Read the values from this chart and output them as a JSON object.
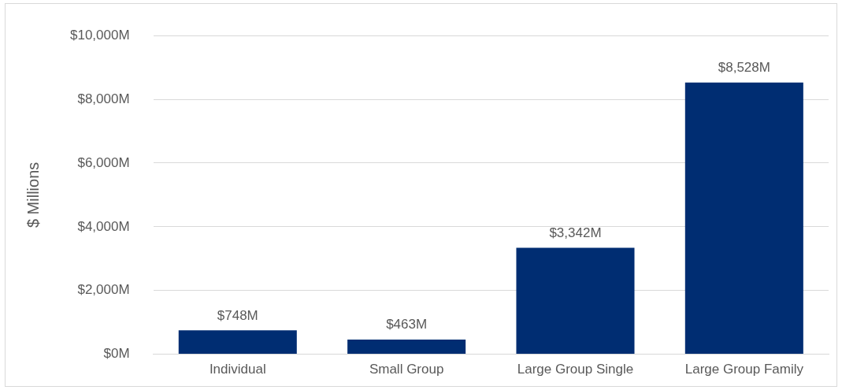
{
  "chart_data": {
    "type": "bar",
    "ylabel": "$ Millions",
    "categories": [
      "Individual",
      "Small Group",
      "Large Group Single",
      "Large Group Family"
    ],
    "values": [
      748,
      463,
      3342,
      8528
    ],
    "value_labels": [
      "$748M",
      "$463M",
      "$3,342M",
      "$8,528M"
    ],
    "color": "#002d72",
    "ylim": [
      0,
      10000
    ],
    "yticks": [
      {
        "value": 0,
        "label": "$0M"
      },
      {
        "value": 2000,
        "label": "$2,000M"
      },
      {
        "value": 4000,
        "label": "$4,000M"
      },
      {
        "value": 6000,
        "label": "$6,000M"
      },
      {
        "value": 8000,
        "label": "$8,000M"
      },
      {
        "value": 10000,
        "label": "$10,000M"
      }
    ],
    "grid": "y",
    "legend": false
  }
}
